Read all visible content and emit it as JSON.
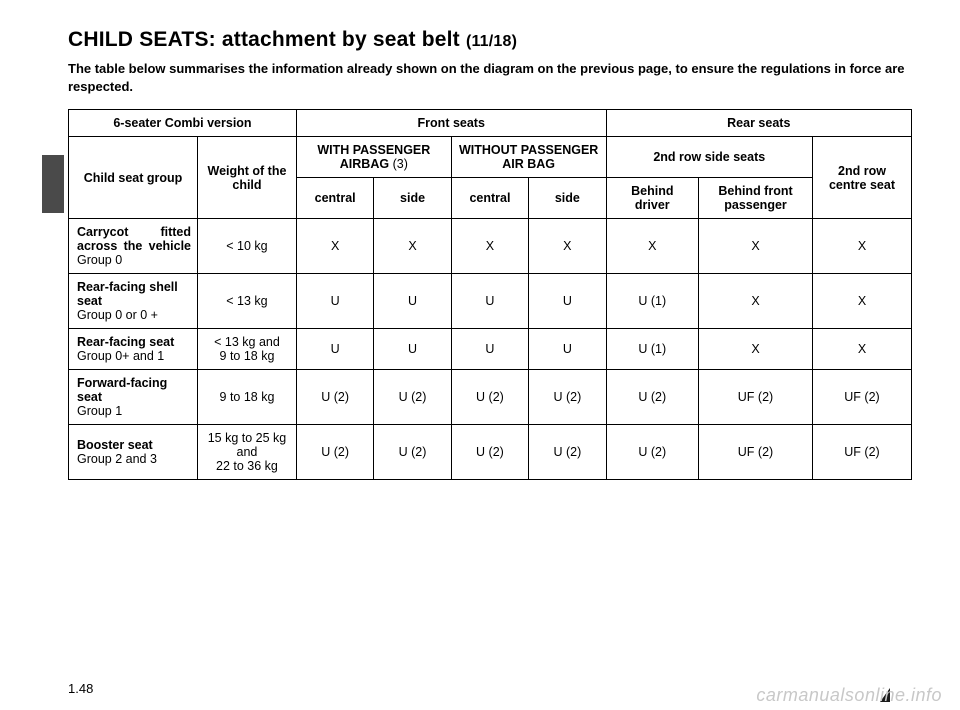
{
  "title_main": "CHILD SEATS: attachment by seat belt",
  "title_sub": "(11/18)",
  "intro": "The table below summarises the information already shown on the diagram on the previous page, to ensure the regulations in force are respected.",
  "page_number": "1.48",
  "watermark": "carmanualsonline.info",
  "table": {
    "header": {
      "version": "6-seater Combi version",
      "front": "Front seats",
      "rear": "Rear seats",
      "group": "Child seat group",
      "weight": "Weight of the child",
      "with_airbag": "WITH PASSENGER AIRBAG",
      "with_airbag_note": "(3)",
      "without_airbag": "WITHOUT PASSENGER AIR BAG",
      "row2_side": "2nd row side seats",
      "row2_centre": "2nd row centre seat",
      "central": "central",
      "side": "side",
      "behind_driver": "Behind driver",
      "behind_front_pax": "Behind front passenger"
    },
    "rows": [
      {
        "label_bold": "Carrycot fitted across the vehicle",
        "label_rest": "Group 0",
        "justify": true,
        "weight": "< 10 kg",
        "c1": "X",
        "c2": "X",
        "c3": "X",
        "c4": "X",
        "c5": "X",
        "c6": "X",
        "c7": "X"
      },
      {
        "label_bold": "Rear-facing shell seat",
        "label_rest": "Group 0 or 0 +",
        "justify": false,
        "weight": "< 13 kg",
        "c1": "U",
        "c2": "U",
        "c3": "U",
        "c4": "U",
        "c5": "U (1)",
        "c6": "X",
        "c7": "X"
      },
      {
        "label_bold": "Rear-facing seat",
        "label_rest": "Group 0+ and 1",
        "justify": false,
        "weight_line1": "< 13 kg and",
        "weight_line2": "9 to 18 kg",
        "c1": "U",
        "c2": "U",
        "c3": "U",
        "c4": "U",
        "c5": "U (1)",
        "c6": "X",
        "c7": "X"
      },
      {
        "label_bold": "Forward-facing seat",
        "label_rest": "Group 1",
        "justify": false,
        "weight": "9 to 18 kg",
        "c1": "U (2)",
        "c2": "U (2)",
        "c3": "U (2)",
        "c4": "U (2)",
        "c5": "U (2)",
        "c6": "UF (2)",
        "c7": "UF (2)"
      },
      {
        "label_bold": "Booster seat",
        "label_rest": "Group 2 and 3",
        "justify": false,
        "weight_line1": "15 kg to 25 kg and",
        "weight_line2": "22 to 36 kg",
        "c1": "U (2)",
        "c2": "U (2)",
        "c3": "U (2)",
        "c4": "U (2)",
        "c5": "U (2)",
        "c6": "UF (2)",
        "c7": "UF (2)"
      }
    ]
  }
}
